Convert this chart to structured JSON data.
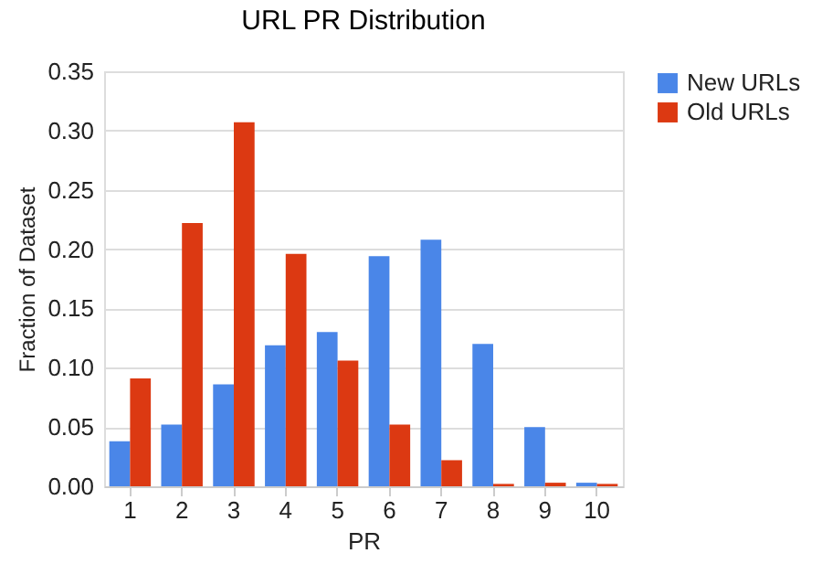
{
  "chart_data": {
    "type": "bar",
    "title": "URL PR Distribution",
    "xlabel": "PR",
    "ylabel": "Fraction of Dataset",
    "categories": [
      "1",
      "2",
      "3",
      "4",
      "5",
      "6",
      "7",
      "8",
      "9",
      "10"
    ],
    "series": [
      {
        "name": "New URLs",
        "color": "#4a86e8",
        "values": [
          0.038,
          0.052,
          0.086,
          0.119,
          0.13,
          0.194,
          0.208,
          0.12,
          0.05,
          0.003
        ]
      },
      {
        "name": "Old URLs",
        "color": "#dc3912",
        "values": [
          0.091,
          0.222,
          0.307,
          0.196,
          0.106,
          0.052,
          0.022,
          0.002,
          0.003,
          0.002
        ]
      }
    ],
    "ylim": [
      0,
      0.35
    ],
    "yticks": [
      {
        "value": 0,
        "label": "0.00"
      },
      {
        "value": 0.05,
        "label": "0.05"
      },
      {
        "value": 0.1,
        "label": "0.10"
      },
      {
        "value": 0.15,
        "label": "0.15"
      },
      {
        "value": 0.2,
        "label": "0.20"
      },
      {
        "value": 0.25,
        "label": "0.25"
      },
      {
        "value": 0.3,
        "label": "0.30"
      },
      {
        "value": 0.35,
        "label": "0.35"
      }
    ],
    "grid": "y",
    "legend": "right"
  }
}
